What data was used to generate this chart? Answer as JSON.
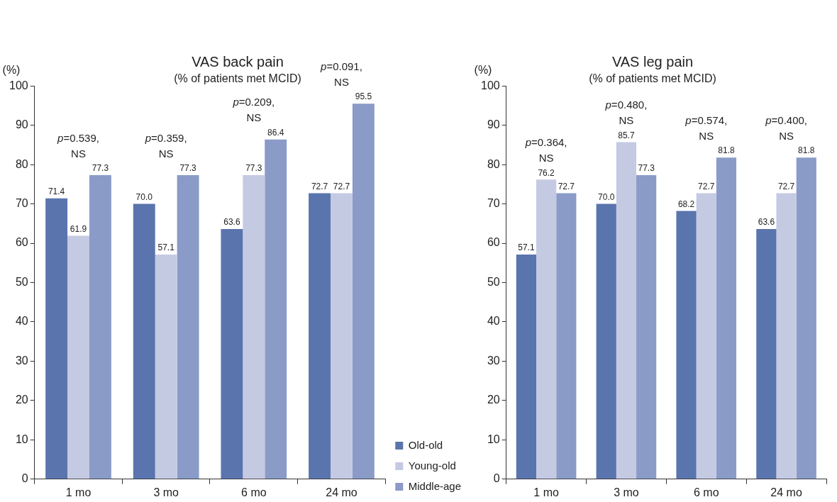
{
  "chart_data": [
    {
      "type": "bar",
      "title": "VAS back pain",
      "subtitle": "(% of patients met MCID)",
      "ylabel": "(%)",
      "categories": [
        "1 mo",
        "3 mo",
        "6 mo",
        "24 mo"
      ],
      "ylim": [
        0,
        100
      ],
      "yticks": [
        0,
        10,
        20,
        30,
        40,
        50,
        60,
        70,
        80,
        90,
        100
      ],
      "legend": "bottom right",
      "series": [
        {
          "name": "Old-old",
          "color": "#5a74ad",
          "values": [
            71.4,
            70.0,
            63.6,
            72.7
          ],
          "value_labels": [
            "71.4",
            "70.0",
            "63.6",
            "72.7"
          ]
        },
        {
          "name": "Young-old",
          "color": "#c5cae3",
          "values": [
            61.9,
            57.1,
            77.3,
            72.7
          ],
          "value_labels": [
            "61.9",
            "57.1",
            "77.3",
            "72.7"
          ]
        },
        {
          "name": "Middle-age",
          "color": "#8a9bc8",
          "values": [
            77.3,
            77.3,
            86.4,
            95.5
          ],
          "value_labels": [
            "77.3",
            "77.3",
            "86.4",
            "95.5"
          ]
        }
      ],
      "annotations": [
        "p=0.539,\nNS",
        "p=0.359,\nNS",
        "p=0.209,\nNS",
        "p=0.091,\nNS"
      ]
    },
    {
      "type": "bar",
      "title": "VAS leg pain",
      "subtitle": "(% of patients met MCID)",
      "ylabel": "(%)",
      "categories": [
        "1 mo",
        "3 mo",
        "6 mo",
        "24 mo"
      ],
      "ylim": [
        0,
        100
      ],
      "yticks": [
        0,
        10,
        20,
        30,
        40,
        50,
        60,
        70,
        80,
        90,
        100
      ],
      "series": [
        {
          "color": "#5a74ad",
          "values": [
            57.1,
            70.0,
            68.2,
            63.6
          ],
          "value_labels": [
            "57.1",
            "70.0",
            "68.2",
            "63.6"
          ]
        },
        {
          "color": "#c5cae3",
          "values": [
            76.2,
            85.7,
            72.7,
            72.7
          ],
          "value_labels": [
            "76.2",
            "85.7",
            "72.7",
            "72.7"
          ]
        },
        {
          "color": "#8a9bc8",
          "values": [
            72.7,
            77.3,
            81.8,
            81.8
          ],
          "value_labels": [
            "72.7",
            "77.3",
            "81.8",
            "81.8"
          ]
        }
      ],
      "annotations": [
        "p=0.364,\nNS",
        "p=0.480,\nNS",
        "p=0.574,\nNS",
        "p=0.400,\nNS"
      ]
    }
  ]
}
